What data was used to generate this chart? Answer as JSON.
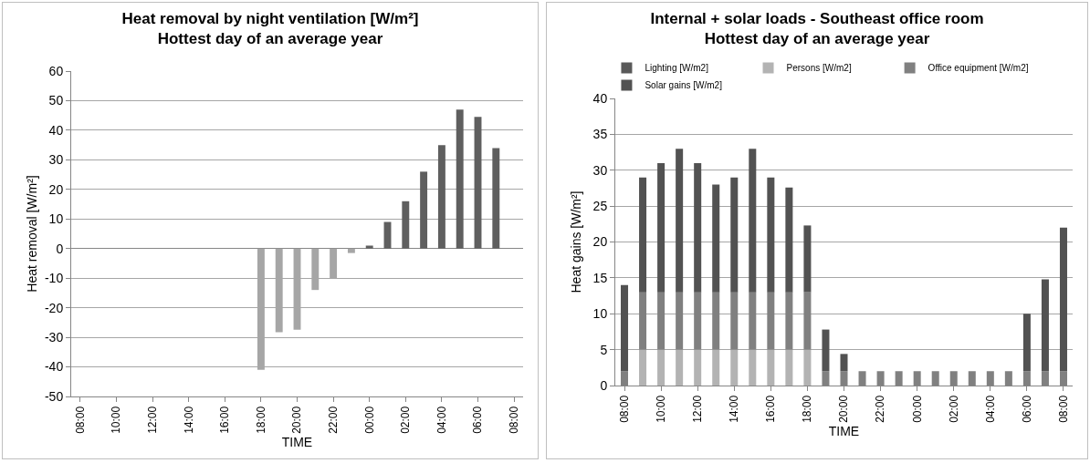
{
  "chart_data": [
    {
      "type": "bar",
      "title": "Heat removal by night ventilation [W/m²]\nHottest day of an average year",
      "xlabel": "TIME",
      "ylabel": "Heat removal [W/m²]",
      "categories": [
        "08:00",
        null,
        "10:00",
        null,
        "12:00",
        null,
        "14:00",
        null,
        "16:00",
        null,
        "18:00",
        null,
        "20:00",
        null,
        "22:00",
        null,
        "00:00",
        null,
        "02:00",
        null,
        "04:00",
        null,
        "06:00",
        null,
        "08:00"
      ],
      "values": [
        null,
        null,
        null,
        null,
        null,
        null,
        null,
        null,
        null,
        null,
        -41,
        -28.3,
        -27.4,
        -14,
        -10,
        -1.5,
        1,
        9,
        16,
        26,
        35,
        47,
        44.5,
        34,
        null
      ],
      "colors": [
        "#a6a6a6",
        "#a6a6a6",
        "#a6a6a6",
        "#a6a6a6",
        "#a6a6a6",
        "#a6a6a6",
        "#a6a6a6",
        "#a6a6a6",
        "#a6a6a6",
        "#a6a6a6",
        "#a6a6a6",
        "#a6a6a6",
        "#a6a6a6",
        "#a6a6a6",
        "#a6a6a6",
        "#a6a6a6",
        "#5f5f5f",
        "#5f5f5f",
        "#5f5f5f",
        "#5f5f5f",
        "#5f5f5f",
        "#5f5f5f",
        "#5f5f5f",
        "#5f5f5f",
        "#5f5f5f"
      ],
      "ylim": [
        -50,
        60
      ],
      "yticks": [
        -50,
        -40,
        -30,
        -20,
        -10,
        0,
        10,
        20,
        30,
        40,
        50,
        60
      ],
      "grid": "y",
      "legend": false
    },
    {
      "type": "bar",
      "title": "Internal + solar loads - Southeast office room\nHottest day of an average year",
      "xlabel": "TIME",
      "ylabel": "Heat gains [W/m²]",
      "stacked": true,
      "categories": [
        "08:00",
        null,
        "10:00",
        null,
        "12:00",
        null,
        "14:00",
        null,
        "16:00",
        null,
        "18:00",
        null,
        "20:00",
        null,
        "22:00",
        null,
        "00:00",
        null,
        "02:00",
        null,
        "04:00",
        null,
        "06:00",
        null,
        "08:00"
      ],
      "series": [
        {
          "name": "Lighting [W/m2]",
          "color": "#595959",
          "values": [
            null,
            null,
            null,
            null,
            null,
            null,
            null,
            null,
            null,
            null,
            null,
            null,
            null,
            null,
            null,
            null,
            null,
            null,
            null,
            null,
            null,
            null,
            null,
            null,
            null
          ]
        },
        {
          "name": "Persons [W/m2]",
          "color": "#b3b3b3",
          "values": [
            null,
            5,
            5,
            5,
            5,
            5,
            5,
            5,
            5,
            5,
            5,
            null,
            null,
            null,
            null,
            null,
            null,
            null,
            null,
            null,
            null,
            null,
            null,
            null,
            null
          ]
        },
        {
          "name": "Office equipment [W/m2]",
          "color": "#808080",
          "values": [
            2,
            8,
            8,
            8,
            8,
            8,
            8,
            8,
            8,
            8,
            8,
            2,
            2,
            2,
            2,
            2,
            2,
            2,
            2,
            2,
            2,
            2,
            2,
            2,
            2
          ]
        },
        {
          "name": "Solar gains [W/m2]",
          "color": "#525252",
          "values": [
            12,
            16,
            18,
            20,
            18,
            15,
            16,
            20,
            16,
            14.6,
            9.3,
            5.8,
            2.4,
            null,
            null,
            null,
            null,
            null,
            null,
            null,
            null,
            null,
            8,
            12.8,
            20
          ]
        }
      ],
      "ylim": [
        0,
        40
      ],
      "yticks": [
        0,
        5,
        10,
        15,
        20,
        25,
        30,
        35,
        40
      ],
      "grid": "y",
      "legend": "top"
    }
  ]
}
